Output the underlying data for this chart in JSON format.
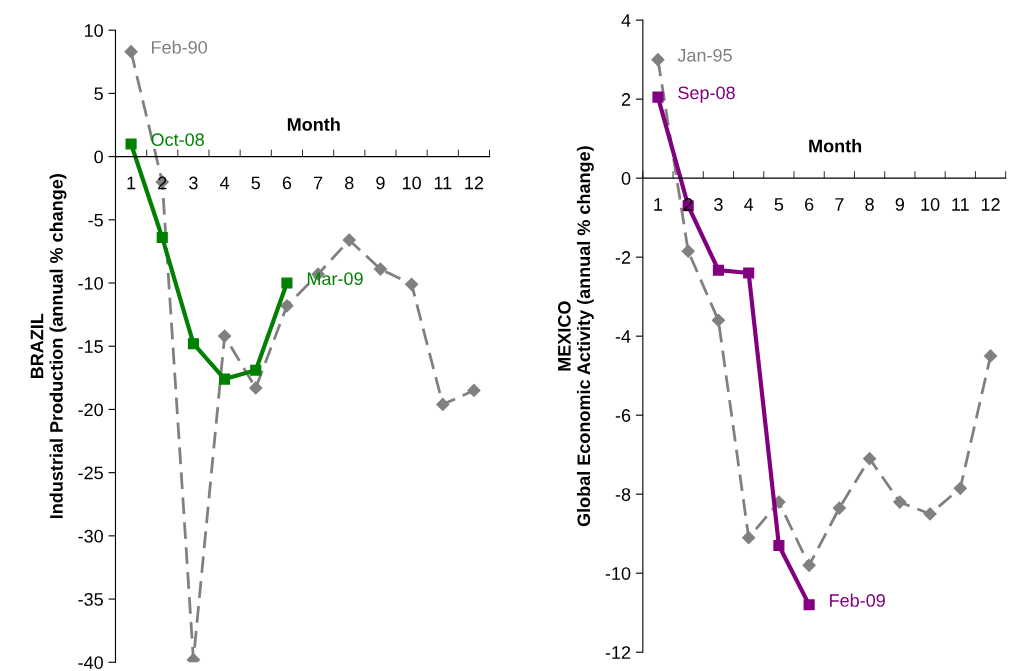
{
  "chart_data": [
    {
      "type": "line",
      "xlabel": "Month",
      "ylabel": "BRAZIL\nIndustrial Production (annual % change)",
      "categories": [
        "1",
        "2",
        "3",
        "4",
        "5",
        "6",
        "7",
        "8",
        "9",
        "10",
        "11",
        "12"
      ],
      "series": [
        {
          "color": "#808080",
          "marker": "diamond",
          "line_style": "dashed",
          "values": [
            8.3,
            -2.0,
            -39.8,
            -14.2,
            -18.3,
            -11.8,
            -9.3,
            -6.6,
            -8.9,
            -10.1,
            -19.6,
            -18.5
          ]
        },
        {
          "color": "#008000",
          "marker": "square",
          "line_style": "solid",
          "values": [
            1.0,
            -6.4,
            -14.8,
            -17.6,
            -16.9,
            -10.0,
            null,
            null,
            null,
            null,
            null,
            null
          ]
        }
      ],
      "annotations": [
        {
          "text": "Feb-90",
          "x": "1",
          "y": 8.3
        },
        {
          "text": "Oct-08",
          "x": "1",
          "y": 1.0
        },
        {
          "text": "Mar-09",
          "x": "6",
          "y": -10.0
        }
      ],
      "ylim": [
        -40,
        10
      ],
      "yticks": [
        -40,
        -35,
        -30,
        -25,
        -20,
        -15,
        -10,
        -5,
        0,
        5,
        10
      ],
      "grid": false
    },
    {
      "type": "line",
      "xlabel": "Month",
      "ylabel": "MEXICO\nGlobal Economic Activity (annual % change)",
      "categories": [
        "1",
        "2",
        "3",
        "4",
        "5",
        "6",
        "7",
        "8",
        "9",
        "10",
        "11",
        "12"
      ],
      "series": [
        {
          "color": "#808080",
          "marker": "diamond",
          "line_style": "dashed",
          "values": [
            3.0,
            -1.85,
            -3.6,
            -9.1,
            -8.2,
            -9.8,
            -8.35,
            -7.1,
            -8.2,
            -8.5,
            -7.85,
            -4.5
          ]
        },
        {
          "color": "#800080",
          "marker": "square",
          "line_style": "solid",
          "values": [
            2.05,
            -0.7,
            -2.33,
            -2.4,
            -9.3,
            -10.8,
            null,
            null,
            null,
            null,
            null,
            null
          ]
        }
      ],
      "annotations": [
        {
          "text": "Jan-95",
          "x": "1",
          "y": 3.0
        },
        {
          "text": "Sep-08",
          "x": "1",
          "y": 2.05
        },
        {
          "text": "Feb-09",
          "x": "6",
          "y": -10.8
        }
      ],
      "ylim": [
        -12,
        4
      ],
      "yticks": [
        -12,
        -10,
        -8,
        -6,
        -4,
        -2,
        0,
        2,
        4
      ],
      "grid": false
    }
  ]
}
